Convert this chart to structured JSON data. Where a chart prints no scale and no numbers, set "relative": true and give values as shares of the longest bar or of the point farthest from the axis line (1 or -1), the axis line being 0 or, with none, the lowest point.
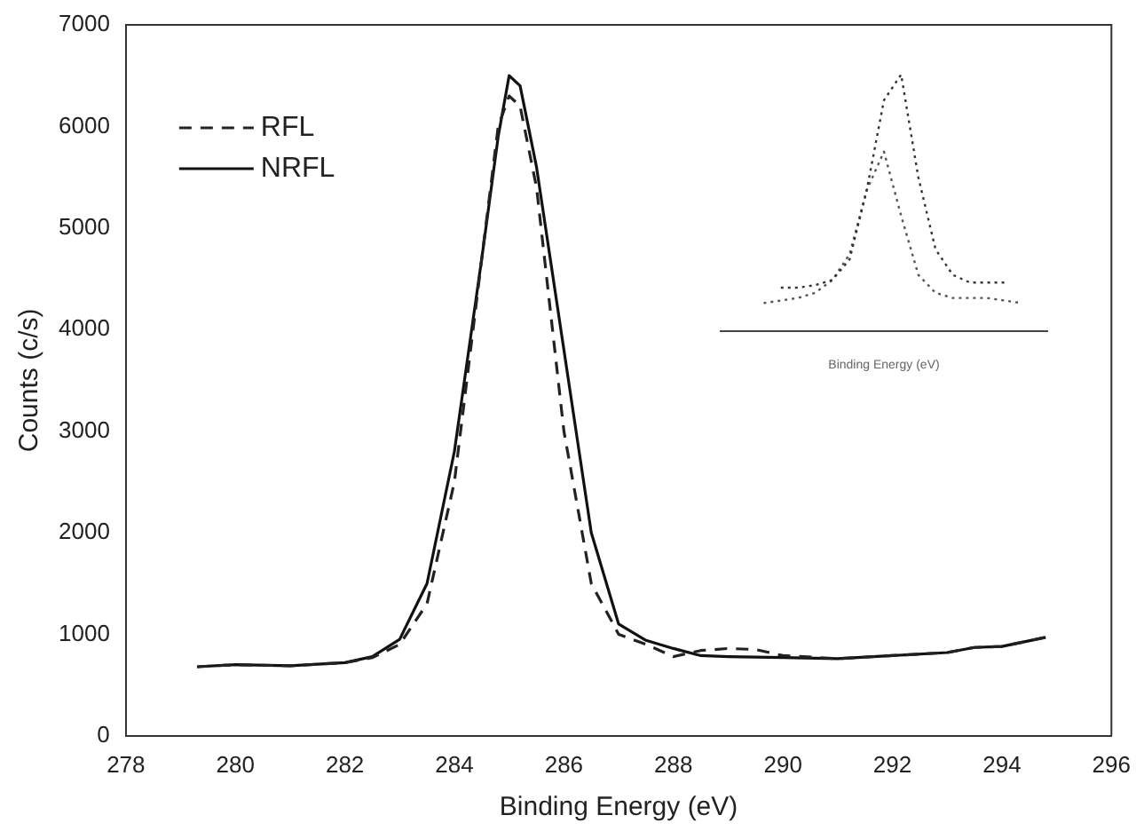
{
  "chart_data": [
    {
      "type": "line",
      "xlabel": "Binding Energy (eV)",
      "ylabel": "Counts (c/s)",
      "xlim": [
        278,
        296
      ],
      "ylim": [
        0,
        7000
      ],
      "xticks": [
        278,
        280,
        282,
        284,
        286,
        288,
        290,
        292,
        294,
        296
      ],
      "yticks": [
        0,
        1000,
        2000,
        3000,
        4000,
        5000,
        6000,
        7000
      ],
      "grid": false,
      "legend": "top left",
      "marker": "none",
      "series": [
        {
          "name": "RFL",
          "color": "#222222",
          "line_style": "dashed",
          "x": [
            279.3,
            280,
            281,
            282,
            282.5,
            283,
            283.5,
            284,
            284.5,
            284.8,
            285,
            285.2,
            285.5,
            286,
            286.5,
            287,
            287.5,
            288,
            288.5,
            289,
            289.5,
            290,
            291,
            292,
            293,
            293.5,
            294,
            294.8
          ],
          "values": [
            680,
            700,
            690,
            720,
            770,
            900,
            1300,
            2500,
            4700,
            6000,
            6300,
            6200,
            5400,
            3000,
            1500,
            1000,
            900,
            780,
            840,
            860,
            850,
            790,
            760,
            790,
            820,
            870,
            880,
            970
          ]
        },
        {
          "name": "NRFL",
          "color": "#111111",
          "line_style": "solid",
          "x": [
            279.3,
            280,
            281,
            282,
            282.5,
            283,
            283.5,
            284,
            284.5,
            284.8,
            285,
            285.2,
            285.5,
            286,
            286.5,
            287,
            287.5,
            288,
            288.5,
            289,
            290,
            291,
            292,
            293,
            293.5,
            294,
            294.8
          ],
          "values": [
            680,
            700,
            690,
            720,
            780,
            950,
            1500,
            2800,
            4700,
            5900,
            6500,
            6400,
            5600,
            3800,
            2000,
            1100,
            940,
            860,
            790,
            780,
            770,
            760,
            790,
            820,
            870,
            880,
            970
          ]
        }
      ]
    },
    {
      "type": "line",
      "xlabel": "Binding Energy (eV)",
      "relative": true,
      "categories": [
        null,
        null,
        null,
        null,
        null,
        null,
        null,
        null,
        null,
        null,
        null,
        null,
        null,
        null,
        null,
        null,
        null,
        null,
        null
      ],
      "marker": "none",
      "line_style": "dotted",
      "series": [
        {
          "color": "#333333",
          "values": [
            null,
            null,
            null,
            0.17,
            0.17,
            0.18,
            0.2,
            0.28,
            0.55,
            0.9,
            1.0,
            0.6,
            0.32,
            0.22,
            0.19,
            0.19,
            0.19,
            null,
            null
          ]
        },
        {
          "color": "#555555",
          "values": [
            null,
            null,
            0.11,
            0.12,
            0.13,
            0.15,
            0.2,
            0.3,
            0.55,
            0.7,
            0.45,
            0.22,
            0.15,
            0.13,
            0.13,
            0.13,
            0.12,
            0.11,
            null
          ]
        }
      ]
    }
  ]
}
